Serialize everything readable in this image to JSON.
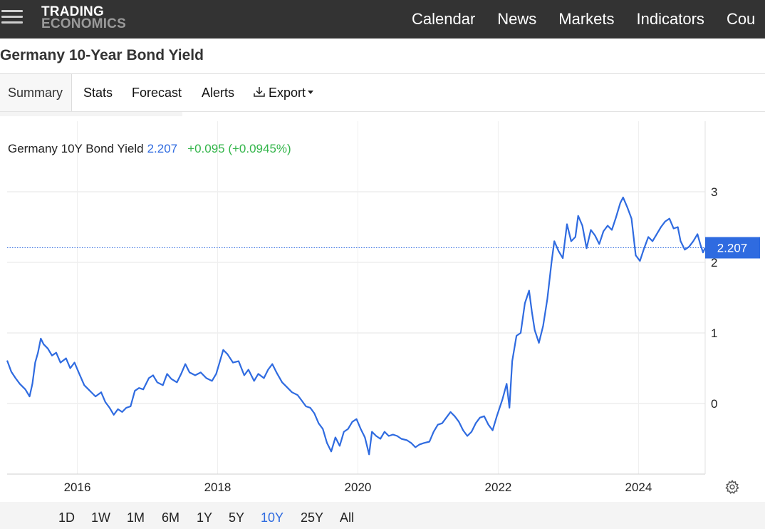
{
  "header": {
    "logo_line1": "TRADING",
    "logo_line2": "ECONOMICS",
    "nav": [
      "Calendar",
      "News",
      "Markets",
      "Indicators",
      "Cou"
    ]
  },
  "page": {
    "title": "Germany 10-Year Bond Yield"
  },
  "tabs": [
    "Summary",
    "Stats",
    "Forecast",
    "Alerts",
    "Export"
  ],
  "active_tab": "Summary",
  "legend": {
    "name": "Germany 10Y Bond Yield",
    "value": "2.207",
    "change": "+0.095 (+0.0945%)"
  },
  "ranges": [
    "1D",
    "1W",
    "1M",
    "6M",
    "1Y",
    "5Y",
    "10Y",
    "25Y",
    "All"
  ],
  "selected_range": "10Y",
  "colors": {
    "line": "#2f6be0",
    "positive": "#33b54a",
    "topbar": "#333333"
  },
  "chart_data": {
    "type": "line",
    "title": "",
    "xlabel": "",
    "ylabel": "",
    "xlim": [
      2015.0,
      2024.95
    ],
    "ylim": [
      -1.0,
      4.0
    ],
    "x_ticks": [
      2016,
      2018,
      2020,
      2022,
      2024
    ],
    "y_ticks": [
      0,
      1,
      2,
      3
    ],
    "grid": "horizontal",
    "current_value": 2.207,
    "current_label": "2.207",
    "series": [
      {
        "values": [
          [
            2015.0,
            0.61
          ],
          [
            2015.06,
            0.45
          ],
          [
            2015.12,
            0.36
          ],
          [
            2015.18,
            0.28
          ],
          [
            2015.26,
            0.2
          ],
          [
            2015.32,
            0.1
          ],
          [
            2015.36,
            0.28
          ],
          [
            2015.4,
            0.58
          ],
          [
            2015.44,
            0.72
          ],
          [
            2015.48,
            0.92
          ],
          [
            2015.52,
            0.84
          ],
          [
            2015.58,
            0.78
          ],
          [
            2015.64,
            0.68
          ],
          [
            2015.7,
            0.72
          ],
          [
            2015.76,
            0.58
          ],
          [
            2015.84,
            0.64
          ],
          [
            2015.9,
            0.5
          ],
          [
            2015.96,
            0.58
          ],
          [
            2016.02,
            0.44
          ],
          [
            2016.1,
            0.26
          ],
          [
            2016.18,
            0.18
          ],
          [
            2016.26,
            0.1
          ],
          [
            2016.34,
            0.16
          ],
          [
            2016.4,
            0.02
          ],
          [
            2016.46,
            -0.06
          ],
          [
            2016.52,
            -0.16
          ],
          [
            2016.58,
            -0.08
          ],
          [
            2016.64,
            -0.12
          ],
          [
            2016.7,
            -0.06
          ],
          [
            2016.76,
            -0.04
          ],
          [
            2016.82,
            0.18
          ],
          [
            2016.88,
            0.22
          ],
          [
            2016.94,
            0.2
          ],
          [
            2017.02,
            0.36
          ],
          [
            2017.08,
            0.4
          ],
          [
            2017.14,
            0.3
          ],
          [
            2017.22,
            0.26
          ],
          [
            2017.28,
            0.42
          ],
          [
            2017.34,
            0.35
          ],
          [
            2017.42,
            0.3
          ],
          [
            2017.48,
            0.42
          ],
          [
            2017.54,
            0.56
          ],
          [
            2017.6,
            0.44
          ],
          [
            2017.68,
            0.4
          ],
          [
            2017.76,
            0.44
          ],
          [
            2017.84,
            0.36
          ],
          [
            2017.92,
            0.32
          ],
          [
            2017.98,
            0.42
          ],
          [
            2018.04,
            0.62
          ],
          [
            2018.08,
            0.76
          ],
          [
            2018.14,
            0.7
          ],
          [
            2018.22,
            0.58
          ],
          [
            2018.3,
            0.6
          ],
          [
            2018.38,
            0.4
          ],
          [
            2018.44,
            0.48
          ],
          [
            2018.52,
            0.32
          ],
          [
            2018.58,
            0.42
          ],
          [
            2018.66,
            0.36
          ],
          [
            2018.72,
            0.48
          ],
          [
            2018.78,
            0.56
          ],
          [
            2018.84,
            0.44
          ],
          [
            2018.92,
            0.3
          ],
          [
            2018.98,
            0.24
          ],
          [
            2019.06,
            0.16
          ],
          [
            2019.14,
            0.12
          ],
          [
            2019.2,
            0.04
          ],
          [
            2019.26,
            -0.04
          ],
          [
            2019.32,
            -0.06
          ],
          [
            2019.38,
            -0.14
          ],
          [
            2019.44,
            -0.28
          ],
          [
            2019.5,
            -0.36
          ],
          [
            2019.56,
            -0.56
          ],
          [
            2019.62,
            -0.68
          ],
          [
            2019.68,
            -0.48
          ],
          [
            2019.74,
            -0.6
          ],
          [
            2019.8,
            -0.4
          ],
          [
            2019.86,
            -0.36
          ],
          [
            2019.92,
            -0.26
          ],
          [
            2019.98,
            -0.22
          ],
          [
            2020.04,
            -0.36
          ],
          [
            2020.1,
            -0.48
          ],
          [
            2020.16,
            -0.72
          ],
          [
            2020.2,
            -0.4
          ],
          [
            2020.26,
            -0.46
          ],
          [
            2020.32,
            -0.5
          ],
          [
            2020.38,
            -0.4
          ],
          [
            2020.44,
            -0.46
          ],
          [
            2020.5,
            -0.44
          ],
          [
            2020.56,
            -0.46
          ],
          [
            2020.62,
            -0.5
          ],
          [
            2020.7,
            -0.52
          ],
          [
            2020.76,
            -0.56
          ],
          [
            2020.82,
            -0.62
          ],
          [
            2020.88,
            -0.58
          ],
          [
            2020.94,
            -0.56
          ],
          [
            2021.02,
            -0.54
          ],
          [
            2021.08,
            -0.4
          ],
          [
            2021.14,
            -0.3
          ],
          [
            2021.2,
            -0.28
          ],
          [
            2021.26,
            -0.2
          ],
          [
            2021.32,
            -0.12
          ],
          [
            2021.38,
            -0.18
          ],
          [
            2021.44,
            -0.26
          ],
          [
            2021.5,
            -0.38
          ],
          [
            2021.56,
            -0.46
          ],
          [
            2021.62,
            -0.4
          ],
          [
            2021.68,
            -0.28
          ],
          [
            2021.74,
            -0.2
          ],
          [
            2021.8,
            -0.18
          ],
          [
            2021.86,
            -0.3
          ],
          [
            2021.92,
            -0.38
          ],
          [
            2021.98,
            -0.18
          ],
          [
            2022.06,
            0.06
          ],
          [
            2022.12,
            0.28
          ],
          [
            2022.16,
            -0.06
          ],
          [
            2022.2,
            0.6
          ],
          [
            2022.26,
            0.96
          ],
          [
            2022.32,
            1.0
          ],
          [
            2022.38,
            1.42
          ],
          [
            2022.44,
            1.6
          ],
          [
            2022.48,
            1.3
          ],
          [
            2022.52,
            1.04
          ],
          [
            2022.58,
            0.86
          ],
          [
            2022.64,
            1.1
          ],
          [
            2022.7,
            1.48
          ],
          [
            2022.76,
            2.0
          ],
          [
            2022.8,
            2.3
          ],
          [
            2022.86,
            2.16
          ],
          [
            2022.92,
            2.06
          ],
          [
            2022.98,
            2.54
          ],
          [
            2023.04,
            2.3
          ],
          [
            2023.1,
            2.36
          ],
          [
            2023.14,
            2.66
          ],
          [
            2023.2,
            2.52
          ],
          [
            2023.26,
            2.2
          ],
          [
            2023.32,
            2.46
          ],
          [
            2023.38,
            2.38
          ],
          [
            2023.44,
            2.26
          ],
          [
            2023.5,
            2.44
          ],
          [
            2023.56,
            2.52
          ],
          [
            2023.62,
            2.46
          ],
          [
            2023.68,
            2.64
          ],
          [
            2023.74,
            2.84
          ],
          [
            2023.78,
            2.92
          ],
          [
            2023.84,
            2.78
          ],
          [
            2023.9,
            2.62
          ],
          [
            2023.96,
            2.1
          ],
          [
            2024.02,
            2.02
          ],
          [
            2024.08,
            2.2
          ],
          [
            2024.14,
            2.36
          ],
          [
            2024.2,
            2.3
          ],
          [
            2024.26,
            2.4
          ],
          [
            2024.32,
            2.5
          ],
          [
            2024.38,
            2.58
          ],
          [
            2024.44,
            2.62
          ],
          [
            2024.5,
            2.48
          ],
          [
            2024.56,
            2.5
          ],
          [
            2024.6,
            2.3
          ],
          [
            2024.66,
            2.18
          ],
          [
            2024.72,
            2.22
          ],
          [
            2024.78,
            2.3
          ],
          [
            2024.84,
            2.4
          ],
          [
            2024.88,
            2.26
          ],
          [
            2024.92,
            2.14
          ],
          [
            2024.95,
            2.207
          ]
        ]
      }
    ]
  }
}
